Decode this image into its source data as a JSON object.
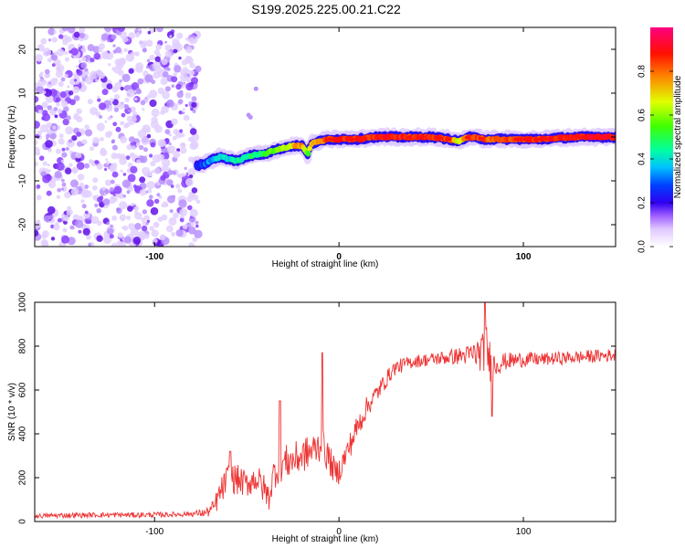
{
  "title": "S199.2025.225.00.21.C22",
  "colors": {
    "signal": "#ee3333",
    "frame": "#000000"
  },
  "chart_data": [
    {
      "type": "heatmap",
      "xlabel": "Height of straight line (km)",
      "ylabel": "Frequency (Hz)",
      "xlim": [
        -165,
        150
      ],
      "ylim": [
        -25,
        25
      ],
      "xticks": [
        -100,
        0,
        100
      ],
      "yticks": [
        -20,
        -10,
        0,
        10,
        20
      ],
      "colorbar": {
        "label": "Normalized spectral amplitude",
        "range": [
          0.0,
          1.0
        ],
        "ticks": [
          0.0,
          0.2,
          0.4,
          0.6,
          0.8
        ],
        "tick_labels": [
          "0.0",
          "0.2",
          "0.4",
          "0.6",
          "0.8"
        ],
        "colormap": [
          "#ffffff",
          "#dcc8ff",
          "#a060ff",
          "#6000e0",
          "#0000ff",
          "#00a0ff",
          "#00ffff",
          "#00ff60",
          "#60ff00",
          "#ffff00",
          "#ff8000",
          "#ff0000",
          "#ff0080"
        ]
      },
      "noise_region_x": [
        -165,
        -80
      ],
      "ridge": {
        "x": [
          -77,
          -72,
          -68,
          -64,
          -60,
          -55,
          -50,
          -45,
          -40,
          -35,
          -30,
          -25,
          -20,
          -17,
          -15,
          -10,
          -5,
          0,
          10,
          20,
          30,
          40,
          50,
          60,
          65,
          70,
          80,
          90,
          100,
          110,
          120,
          130,
          140,
          150
        ],
        "freq": [
          -6.5,
          -6.0,
          -5.0,
          -4.5,
          -5.0,
          -5.5,
          -4.5,
          -4.0,
          -3.8,
          -3.0,
          -2.5,
          -2.0,
          -2.0,
          -4.0,
          -1.5,
          -1.0,
          -0.5,
          -0.5,
          -0.5,
          0.0,
          0.0,
          0.0,
          0.0,
          -0.5,
          -1.0,
          0.0,
          -0.5,
          -0.5,
          -0.5,
          -0.5,
          -0.2,
          0.0,
          0.0,
          0.0
        ],
        "amp": [
          0.15,
          0.25,
          0.3,
          0.32,
          0.35,
          0.38,
          0.42,
          0.45,
          0.5,
          0.55,
          0.62,
          0.7,
          0.8,
          0.5,
          0.75,
          0.8,
          0.88,
          0.9,
          0.92,
          0.9,
          0.92,
          0.9,
          0.92,
          0.88,
          0.6,
          0.9,
          0.85,
          0.85,
          0.88,
          0.9,
          0.92,
          0.92,
          0.93,
          0.93
        ]
      }
    },
    {
      "type": "line",
      "xlabel": "Height of straight line (km)",
      "ylabel": "SNR (10 * v/v)",
      "xlim": [
        -165,
        150
      ],
      "ylim": [
        0,
        1000
      ],
      "xticks": [
        -100,
        0,
        100
      ],
      "yticks": [
        0,
        200,
        400,
        600,
        800,
        1000
      ],
      "series": [
        {
          "name": "SNR",
          "x": [
            -165,
            -150,
            -130,
            -110,
            -90,
            -80,
            -72,
            -68,
            -65,
            -60,
            -55,
            -50,
            -45,
            -40,
            -38,
            -35,
            -30,
            -25,
            -20,
            -15,
            -10,
            -8,
            -5,
            -2,
            0,
            5,
            10,
            15,
            20,
            25,
            30,
            40,
            50,
            60,
            70,
            78,
            80,
            83,
            85,
            90,
            100,
            110,
            120,
            130,
            140,
            150
          ],
          "y": [
            25,
            28,
            30,
            30,
            32,
            35,
            40,
            60,
            120,
            200,
            190,
            170,
            200,
            140,
            110,
            230,
            270,
            280,
            300,
            320,
            350,
            330,
            280,
            220,
            230,
            330,
            430,
            520,
            580,
            640,
            700,
            730,
            740,
            750,
            760,
            770,
            790,
            700,
            720,
            730,
            740,
            740,
            745,
            750,
            755,
            760
          ],
          "spikes": [
            {
              "x": -59,
              "y": 320
            },
            {
              "x": -32,
              "y": 550
            },
            {
              "x": -9,
              "y": 770
            },
            {
              "x": 79,
              "y": 1000
            },
            {
              "x": 83,
              "y": 480
            }
          ],
          "noise_amp": [
            10,
            12,
            12,
            12,
            12,
            12,
            20,
            40,
            60,
            70,
            70,
            60,
            70,
            70,
            60,
            80,
            80,
            80,
            80,
            80,
            80,
            80,
            70,
            60,
            60,
            60,
            60,
            50,
            45,
            40,
            35,
            30,
            30,
            35,
            45,
            90,
            110,
            90,
            60,
            40,
            35,
            30,
            30,
            30,
            30,
            30
          ]
        }
      ]
    }
  ]
}
